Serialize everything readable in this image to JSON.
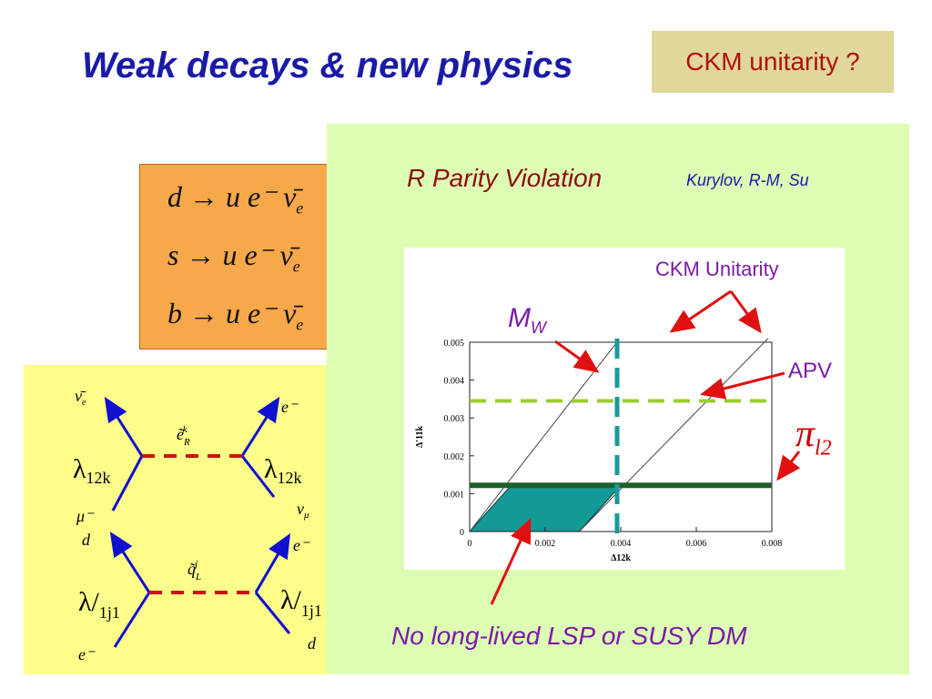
{
  "slide": {
    "title": "Weak decays & new physics",
    "ckm_question": "CKM unitarity ?"
  },
  "decays": {
    "row1": "d → u e⁻ ν̄",
    "row2": "s → u e⁻ ν̄",
    "row3": "b → u e⁻ ν̄",
    "subscript": "e"
  },
  "feynman": {
    "top_left_out": "ν̄",
    "top_left_out_sub": "e",
    "top_right_out": "e⁻",
    "top_propagator": "ẽ",
    "top_propagator_sub": "R",
    "top_propagator_sup": "k",
    "top_left_coupling": "λ",
    "top_left_coupling_sub": "12k",
    "top_right_coupling": "λ",
    "top_right_coupling_sub": "12k",
    "top_left_in": "μ⁻",
    "top_right_in": "ν",
    "top_right_in_sub": "μ",
    "bottom_left_out": "d",
    "bottom_right_out": "e⁻",
    "bottom_propagator": "q̃",
    "bottom_propagator_sub": "L",
    "bottom_propagator_sup": "j",
    "bottom_left_coupling": "λ/",
    "bottom_left_coupling_sub": "1j1",
    "bottom_right_coupling": "λ/",
    "bottom_right_coupling_sub": "1j1",
    "bottom_left_in": "e⁻",
    "bottom_right_in": "d"
  },
  "rpv": {
    "title": "R Parity Violation",
    "authors": "Kurylov, R-M, Su"
  },
  "annotations": {
    "ckm_unitarity": "CKM Unitarity",
    "apv": "APV",
    "mw": "M",
    "mw_sub": "W",
    "pi": "π",
    "pi_sub": "l2",
    "lsp": "No long-lived LSP or SUSY DM"
  },
  "chart_data": {
    "type": "line",
    "xlabel": "Δ12k",
    "ylabel": "Δ'11k",
    "xlim": [
      0,
      0.008
    ],
    "ylim": [
      0,
      0.005
    ],
    "x_ticks": [
      "0",
      "0.002",
      "0.004",
      "0.006",
      "0.008"
    ],
    "y_ticks": [
      "0",
      "0.001",
      "0.002",
      "0.003",
      "0.004",
      "0.005"
    ],
    "ckm_band_lines": [
      [
        [
          0.0,
          0.0
        ],
        [
          0.0039,
          0.005
        ]
      ],
      [
        [
          0.0029,
          0.0
        ],
        [
          0.0079,
          0.0051
        ]
      ]
    ],
    "mw_limit_x": 0.004,
    "apv_limit_y": 0.00345,
    "pi_l2_limit_y": 0.00122,
    "allowed_region": [
      [
        0.0,
        0.0
      ],
      [
        0.0029,
        0.0
      ],
      [
        0.004,
        0.00122
      ],
      [
        0.0011,
        0.00122
      ]
    ],
    "colors": {
      "ckm_lines": "#444444",
      "mw_line": "#1a9a9a",
      "apv_line": "#9acd32",
      "pi_l2_line": "#1f5f2a",
      "allowed_fill": "#149a96"
    }
  }
}
